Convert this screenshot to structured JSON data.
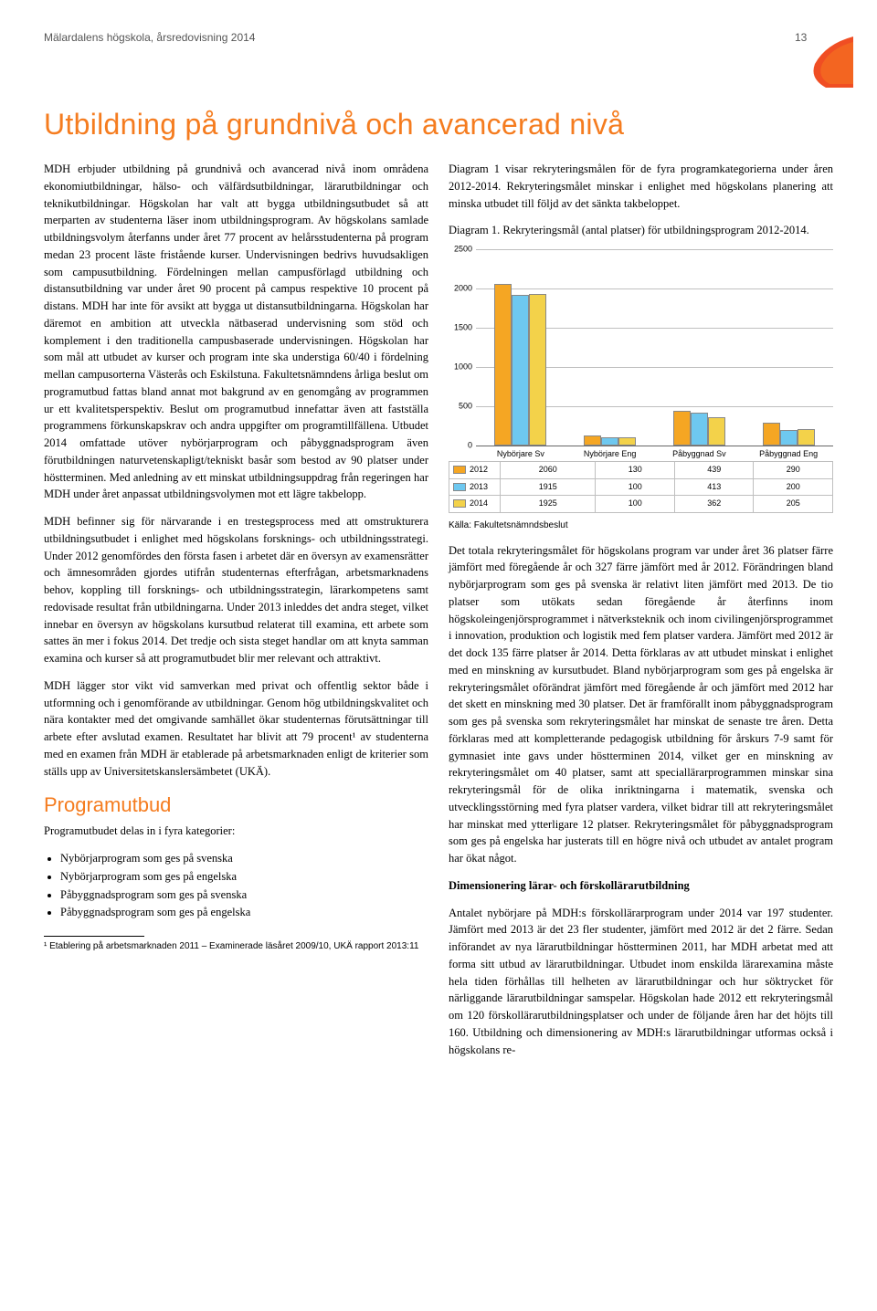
{
  "header": {
    "left": "Mälardalens högskola, årsredovisning 2014",
    "page_number": "13",
    "shape_color": "#f04e23"
  },
  "title": "Utbildning på grundnivå och avancerad nivå",
  "left_column": {
    "p1": "MDH erbjuder utbildning på grundnivå och avancerad nivå inom områdena ekonomiutbildningar, hälso- och välfärdsutbildningar, lärarutbildningar och teknikutbildningar. Högskolan har valt att bygga utbildningsutbudet så att merparten av studenterna läser inom utbildningsprogram. Av högskolans samlade utbildningsvolym återfanns under året 77 procent av helårsstudenterna på program medan 23 procent läste fristående kurser. Undervisningen bedrivs huvudsakligen som campusutbildning. Fördelningen mellan campusförlagd utbildning och distansutbildning var under året 90 procent på campus respektive 10 procent på distans. MDH har inte för avsikt att bygga ut distansutbildningarna. Högskolan har däremot en ambition att utveckla nätbaserad undervisning som stöd och komplement i den traditionella campusbaserade undervisningen. Högskolan har som mål att utbudet av kurser och program inte ska understiga 60/40 i fördelning mellan campusorterna Västerås och Eskilstuna. Fakultetsnämndens årliga beslut om programutbud fattas bland annat mot bakgrund av en genomgång av programmen ur ett kvalitetsperspektiv. Beslut om programutbud innefattar även att fastställa programmens förkunskapskrav och andra uppgifter om programtillfällena. Utbudet 2014 omfattade utöver nybörjarprogram och påbyggnadsprogram även förutbildningen naturvetenskapligt/tekniskt basår som bestod av 90 platser under höstterminen. Med anledning av ett minskat utbildningsuppdrag från regeringen har MDH under året anpassat utbildningsvolymen mot ett lägre takbelopp.",
    "p2": "MDH befinner sig för närvarande i en trestegsprocess med att omstrukturera utbildningsutbudet i enlighet med högskolans forsknings- och utbildningsstrategi. Under 2012 genomfördes den första fasen i arbetet där en översyn av examensrätter och ämnesområden gjordes utifrån studenternas efterfrågan, arbetsmarknadens behov, koppling till forsknings- och utbildningsstrategin, lärarkompetens samt redovisade resultat från utbildningarna. Under 2013 inleddes det andra steget, vilket innebar en översyn av högskolans kursutbud relaterat till examina, ett arbete som sattes än mer i fokus 2014. Det tredje och sista steget handlar om att knyta samman examina och kurser så att programutbudet blir mer relevant och attraktivt.",
    "p3": "MDH lägger stor vikt vid samverkan med privat och offentlig sektor både i utformning och i genomförande av utbildningar. Genom hög utbildningskvalitet och nära kontakter med det omgivande samhället ökar studenternas förutsättningar till arbete efter avslutad examen. Resultatet har blivit att 79 procent¹ av studenterna med en examen från MDH är etablerade på arbetsmarknaden enligt de kriterier som ställs upp av Universitetskanslersämbetet (UKÄ).",
    "h2": "Programutbud",
    "h2_sub": "Programutbudet delas in i fyra kategorier:",
    "bullets": [
      "Nybörjarprogram som ges på svenska",
      "Nybörjarprogram som ges på engelska",
      "Påbyggnadsprogram som ges på svenska",
      "Påbyggnadsprogram som ges på engelska"
    ],
    "footnote": "¹   Etablering på arbetsmarknaden 2011 – Examinerade läsåret 2009/10, UKÄ rapport 2013:11"
  },
  "right_column": {
    "p1": "Diagram 1 visar rekryteringsmålen för de fyra programkategorierna under åren 2012-2014. Rekryteringsmålet minskar i enlighet med högskolans planering att minska utbudet till följd av det sänkta takbeloppet.",
    "caption": "Diagram 1. Rekryteringsmål (antal platser) för utbildningsprogram 2012-2014.",
    "source": "Källa: Fakultetsnämndsbeslut",
    "p2": "Det totala rekryteringsmålet för högskolans program var under året 36 platser färre jämfört med föregående år och 327 färre jämfört med år 2012. Förändringen bland nybörjarprogram som ges på svenska är relativt liten jämfört med 2013. De tio platser som utökats sedan föregående år återfinns inom högskoleingenjörsprogrammet i nätverksteknik och inom civilingenjörsprogrammet i innovation, produktion och logistik med fem platser vardera. Jämfört med 2012 är det dock 135 färre platser år 2014. Detta förklaras av att utbudet minskat i enlighet med en minskning av kursutbudet. Bland nybörjarprogram som ges på engelska är rekryteringsmålet oförändrat jämfört med föregående år och jämfört med 2012 har det skett en minskning med 30 platser. Det är framförallt inom påbyggnadsprogram som ges på svenska som rekryteringsmålet har minskat de senaste tre åren. Detta förklaras med att kompletterande pedagogisk utbildning för årskurs 7-9 samt för gymnasiet inte gavs under höstterminen 2014, vilket ger en minskning av rekryteringsmålet om 40 platser, samt att speciallärarprogrammen minskar sina rekryteringsmål för de olika inriktningarna i matematik, svenska och utvecklingsstörning med fyra platser vardera, vilket bidrar till att rekryteringsmålet har minskat med ytterligare 12 platser. Rekryteringsmålet för påbyggnadsprogram som ges på engelska har justerats till en högre nivå och utbudet av antalet program har ökat något.",
    "h3": "Dimensionering lärar- och förskollärarutbildning",
    "p3": "Antalet nybörjare på MDH:s förskollärarprogram under 2014 var 197 studenter. Jämfört med 2013 är det 23 fler studenter, jämfört med 2012 är det 2 färre. Sedan införandet av nya lärarutbildningar höstterminen 2011, har MDH arbetat med att forma sitt utbud av lärarutbildningar. Utbudet inom enskilda lärarexamina måste hela tiden förhållas till helheten av lärarutbildningar och hur söktrycket för närliggande lärarutbildningar samspelar. Högskolan hade 2012 ett rekryteringsmål om 120 förskollärarutbildningsplatser och under de följande åren har det höjts till 160. Utbildning och dimensionering av MDH:s lärarutbildningar utformas också i högskolans re-"
  },
  "chart": {
    "type": "bar",
    "categories": [
      "Nybörjare Sv",
      "Nybörjare Eng",
      "Påbyggnad Sv",
      "Påbyggnad Eng"
    ],
    "series": [
      {
        "label": "2012",
        "color": "#f5a623",
        "values": [
          2060,
          130,
          439,
          290
        ]
      },
      {
        "label": "2013",
        "color": "#6ec8f0",
        "values": [
          1915,
          100,
          413,
          200
        ]
      },
      {
        "label": "2014",
        "color": "#f3d24a",
        "values": [
          1925,
          100,
          362,
          205
        ]
      }
    ],
    "ylim": [
      0,
      2500
    ],
    "ytick_step": 500,
    "background_color": "#ffffff",
    "grid_color": "#bfbfbf",
    "axis_fontsize": 9
  }
}
